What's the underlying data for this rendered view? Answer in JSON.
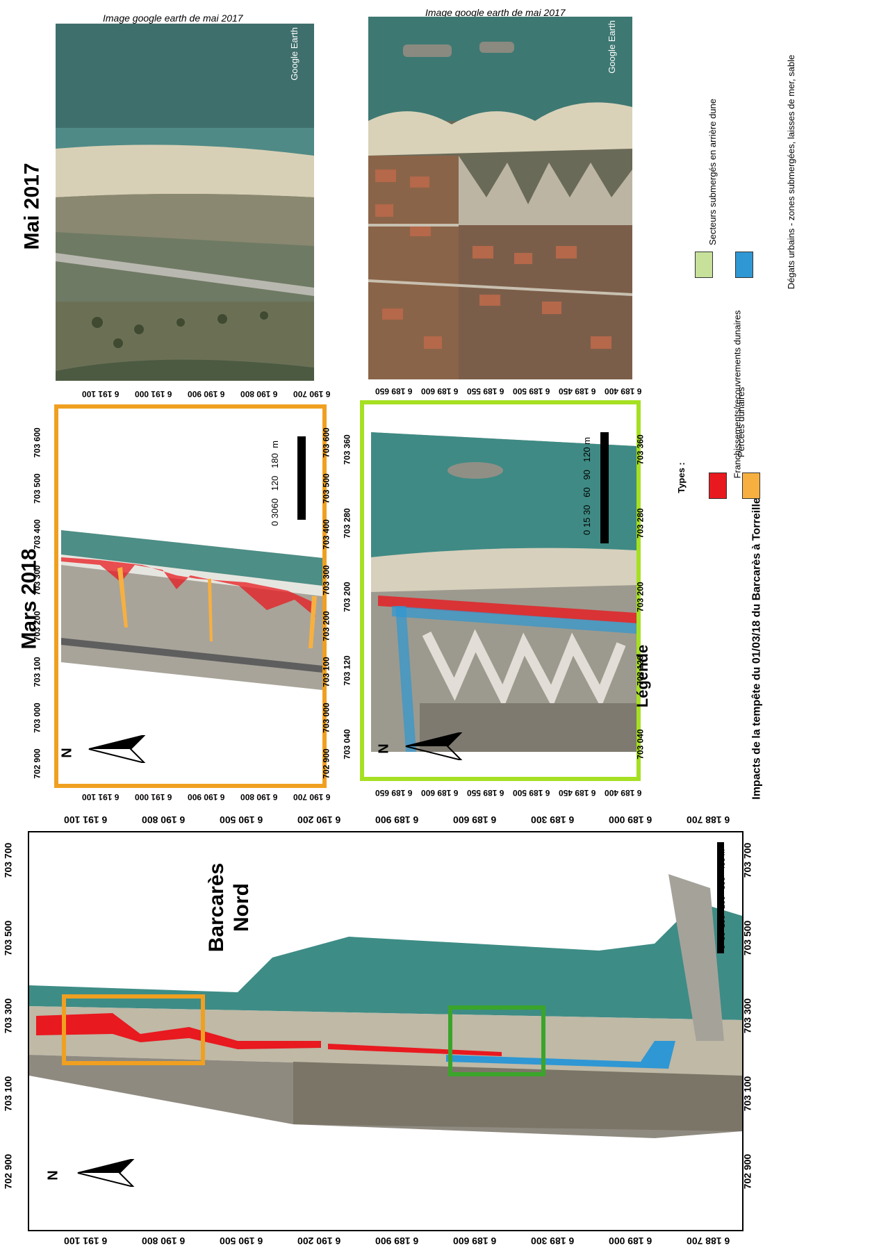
{
  "top_captions": {
    "left": "Image google earth de mai 2017",
    "right": "Image google earth de mai 2017"
  },
  "google_earth_watermark": "Google Earth",
  "section_titles": {
    "mai2017": "Mai 2017",
    "mars2018": "Mars 2018"
  },
  "place_label": "Barcarès Nord",
  "north_label": "N",
  "legend": {
    "title": "Légende",
    "subtitle": "Impacts de la tempête du 01/03/18 du Barcarès à Torreilles",
    "types_label": "Types :",
    "items": [
      {
        "label": "Franchissements/recouvrements dunaires",
        "color": "#e8191f"
      },
      {
        "label": "Percées dunaires",
        "color": "#f7b040"
      },
      {
        "label": "Secteurs submergés en arrière dune",
        "color": "#c7e19a"
      },
      {
        "label": "Dégats urbains - zones submergées, laisses de mer, sable",
        "color": "#2f97d3"
      }
    ]
  },
  "colors": {
    "orange_frame": "#f0a020",
    "green_frame": "#a6e022",
    "dark_green_frame": "#3aa52a",
    "overwash": "#e8191f",
    "breach": "#f7b040",
    "submerged": "#2f97d3",
    "sea": "#3e8c86"
  },
  "map_top_left": {
    "x_ticks": [
      "6 191 100",
      "6 191 000",
      "6 190 900",
      "6 190 800",
      "6 190 700"
    ],
    "y_ticks": [
      "703 600",
      "703 500",
      "703 400",
      "703 300",
      "703 200",
      "703 100",
      "703 000",
      "702 900"
    ],
    "scale_labels": [
      "0 3060",
      "120",
      "180",
      "m"
    ]
  },
  "map_mid": {
    "x_ticks": [
      "6 189 650",
      "6 189 600",
      "6 189 550",
      "6 189 500",
      "6 189 450",
      "6 189 400"
    ],
    "y_ticks": [
      "703 360",
      "703 280",
      "703 200",
      "703 120",
      "703 040"
    ],
    "scale_labels": [
      "0",
      "15",
      "30",
      "60",
      "90",
      "120",
      "m"
    ]
  },
  "map_bottom": {
    "x_ticks": [
      "6 191 100",
      "6 190 800",
      "6 190 500",
      "6 190 200",
      "6 189 900",
      "6 189 600",
      "6 189 300",
      "6 189 000",
      "6 188 700"
    ],
    "y_ticks": [
      "703 700",
      "703 500",
      "703 300",
      "703 100",
      "702 900"
    ],
    "scale_labels": [
      "0",
      "50",
      "100",
      "200",
      "300",
      "400",
      "m"
    ]
  }
}
